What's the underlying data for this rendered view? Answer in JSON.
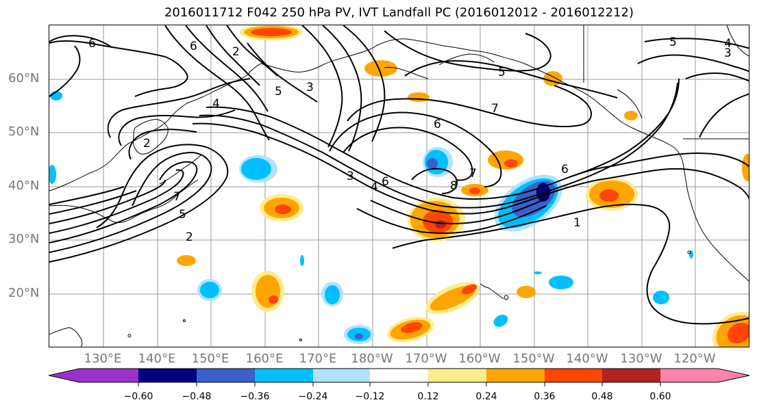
{
  "title": "2016011712 F042 250 hPa PV, IVT Landfall PC (2016012012 - 2016012212)",
  "colors": {
    "neg_060": "#9932CC",
    "neg_048": "#000080",
    "neg_036": "#3A5FCD",
    "neg_024": "#00BFFF",
    "neg_012": "#B0E2FF",
    "zero": "#FFFFFF",
    "pos_012": "#FFEC8B",
    "pos_024": "#FFA500",
    "pos_036": "#FF4500",
    "pos_048": "#B22222",
    "pos_060": "#FF82AB",
    "grid": "#999999",
    "coast": "#000000",
    "axis_label": "#777777"
  },
  "map": {
    "lat_labels": [
      "60°N",
      "50°N",
      "40°N",
      "30°N",
      "20°N"
    ],
    "lon_labels": [
      "130°E",
      "140°E",
      "150°E",
      "160°E",
      "170°E",
      "180°W",
      "170°W",
      "160°W",
      "150°W",
      "140°W",
      "130°W",
      "120°W"
    ],
    "contour_labels": [
      "6",
      "6",
      "2",
      "5",
      "3",
      "4",
      "2",
      "7",
      "5",
      "2",
      "3",
      "4",
      "6",
      "5",
      "6",
      "7",
      "7",
      "8",
      "1",
      "5",
      "4",
      "3",
      "6"
    ]
  },
  "colorbar": {
    "ticks": [
      "−0.60",
      "−0.48",
      "−0.36",
      "−0.24",
      "−0.12",
      "0.12",
      "0.24",
      "0.36",
      "0.48",
      "0.60"
    ]
  }
}
